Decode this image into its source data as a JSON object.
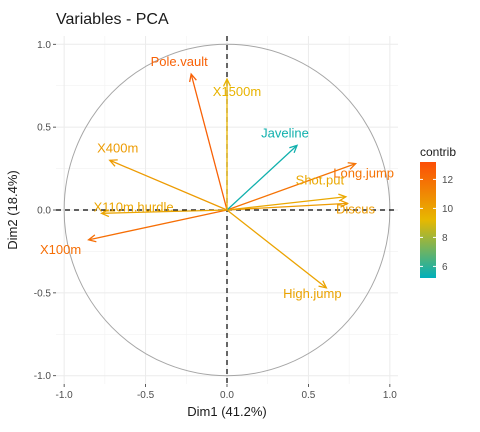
{
  "chart_data": {
    "type": "scatter",
    "title": "Variables - PCA",
    "xlabel": "Dim1 (41.2%)",
    "ylabel": "Dim2 (18.4%)",
    "xlim": [
      -1.05,
      1.05
    ],
    "ylim": [
      -1.05,
      1.05
    ],
    "x_ticks": [
      -1.0,
      -0.5,
      0.0,
      0.5,
      1.0
    ],
    "y_ticks": [
      -1.0,
      -0.5,
      0.0,
      0.5,
      1.0
    ],
    "x_tick_labels": [
      "-1.0",
      "-0.5",
      "0.0",
      "0.5",
      "1.0"
    ],
    "y_tick_labels": [
      "-1.0",
      "-0.5",
      "0.0",
      "0.5",
      "1.0"
    ],
    "grid": true,
    "unit_circle": true,
    "legend": {
      "title": "contrib",
      "position": "right",
      "ticks": [
        6,
        8,
        10,
        12
      ],
      "tick_labels": [
        "6",
        "8",
        "10",
        "12"
      ],
      "range": [
        5.2,
        13.2
      ],
      "colors": [
        "#00AFBB",
        "#E7B800",
        "#FC4E07"
      ]
    },
    "variables": [
      {
        "name": "X100m",
        "x": -0.85,
        "y": -0.18,
        "contrib": 12.0
      },
      {
        "name": "Long.jump",
        "x": 0.79,
        "y": 0.28,
        "contrib": 11.8
      },
      {
        "name": "Shot.put",
        "x": 0.73,
        "y": 0.08,
        "contrib": 9.8
      },
      {
        "name": "High.jump",
        "x": 0.61,
        "y": -0.47,
        "contrib": 10.0
      },
      {
        "name": "X400m",
        "x": -0.72,
        "y": 0.3,
        "contrib": 10.3
      },
      {
        "name": "X110m.hurdle",
        "x": -0.77,
        "y": -0.02,
        "contrib": 9.9
      },
      {
        "name": "Discus",
        "x": 0.74,
        "y": 0.04,
        "contrib": 10.3
      },
      {
        "name": "Pole.vault",
        "x": -0.22,
        "y": 0.82,
        "contrib": 12.5
      },
      {
        "name": "Javeline",
        "x": 0.43,
        "y": 0.39,
        "contrib": 5.5
      },
      {
        "name": "X1500m",
        "x": 0.0,
        "y": 0.79,
        "contrib": 9.4
      }
    ]
  }
}
